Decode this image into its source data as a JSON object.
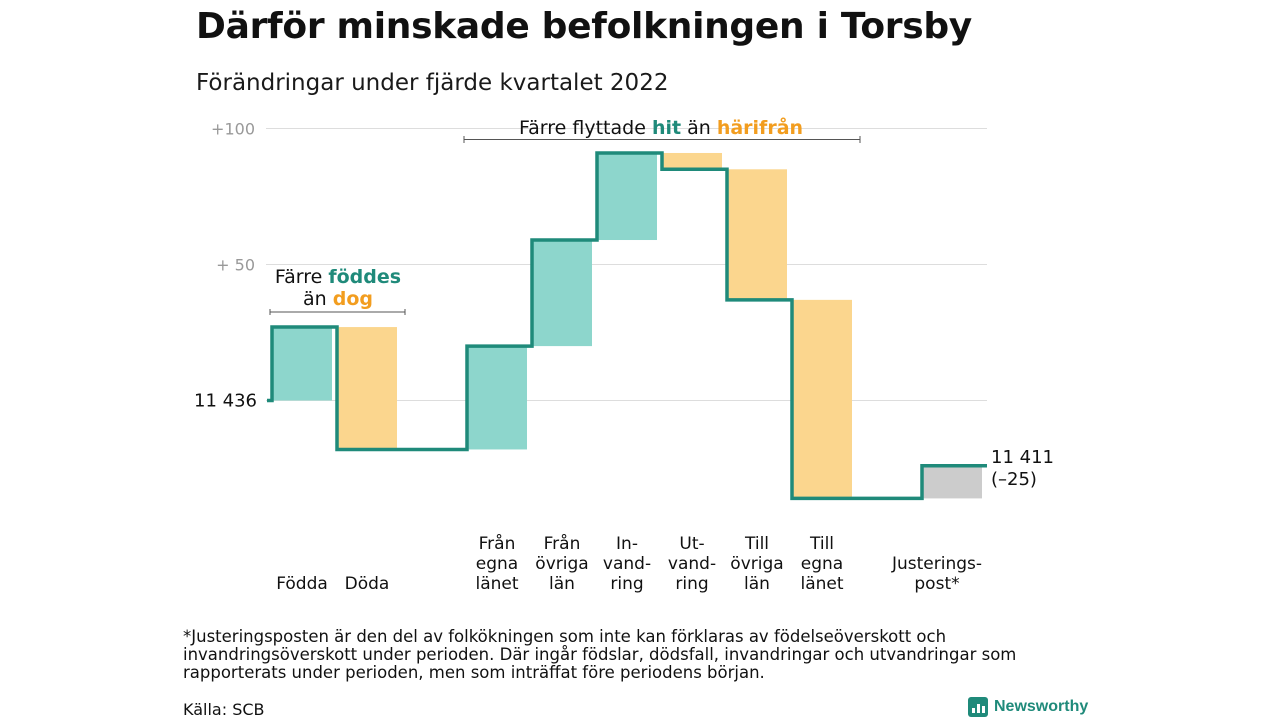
{
  "title": "Därför minskade befolkningen i Torsby",
  "subtitle": "Förändringar under fjärde kvartalet 2022",
  "chart_data": {
    "type": "waterfall",
    "start": {
      "value": 11436,
      "label": "11 436"
    },
    "end": {
      "value": 11411,
      "label": "11 411",
      "change_label": "(–25)"
    },
    "y_ticks": [
      {
        "value": 100,
        "label": "+100"
      },
      {
        "value": 50,
        "label": "+ 50"
      }
    ],
    "ylim": [
      -40,
      100
    ],
    "grid": true,
    "steps": [
      {
        "label": [
          "Födda"
        ],
        "change": 27,
        "kind": "in"
      },
      {
        "label": [
          "Döda"
        ],
        "change": -45,
        "kind": "out"
      },
      {
        "label": [
          ""
        ],
        "change": 0,
        "kind": "gap"
      },
      {
        "label": [
          "Från",
          "egna",
          "länet"
        ],
        "change": 38,
        "kind": "in"
      },
      {
        "label": [
          "Från",
          "övriga",
          "län"
        ],
        "change": 39,
        "kind": "in"
      },
      {
        "label": [
          "In-",
          "vand-",
          "ring"
        ],
        "change": 32,
        "kind": "in"
      },
      {
        "label": [
          "Ut-",
          "vand-",
          "ring"
        ],
        "change": -6,
        "kind": "out"
      },
      {
        "label": [
          "Till",
          "övriga",
          "län"
        ],
        "change": -48,
        "kind": "out"
      },
      {
        "label": [
          "Till",
          "egna",
          "länet"
        ],
        "change": -73,
        "kind": "out"
      },
      {
        "label": [
          ""
        ],
        "change": 0,
        "kind": "gap"
      },
      {
        "label": [
          "Justerings-",
          "post*"
        ],
        "change": 12,
        "kind": "adjust"
      }
    ],
    "annotations": [
      {
        "parts": [
          {
            "text": "Färre ",
            "color": "#111111"
          },
          {
            "text": "föddes",
            "color": "#1f8a7a"
          }
        ],
        "parts2": [
          {
            "text": "än ",
            "color": "#111111"
          },
          {
            "text": "dog",
            "color": "#f29d1f"
          }
        ]
      },
      {
        "parts": [
          {
            "text": "Färre flyttade ",
            "color": "#111111"
          },
          {
            "text": "hit",
            "color": "#1f8a7a"
          },
          {
            "text": " än ",
            "color": "#111111"
          },
          {
            "text": "härifrån",
            "color": "#f29d1f"
          }
        ]
      }
    ],
    "colors": {
      "in": "#8dd6cc",
      "out": "#fbd68e",
      "adjust": "#cccccc",
      "line": "#1f8a7a",
      "grid": "#dddddd",
      "tick": "#999999"
    }
  },
  "note": "*Justeringsposten är den del av folkökningen som inte kan förklaras av födelseöverskott och invandringsöverskott under perioden. Där ingår födslar, dödsfall, invandringar och utvandringar som rapporterats under perioden, men som inträffat före periodens början.",
  "source": "Källa: SCB",
  "brand": {
    "name": "Newsworthy",
    "icon": "newsworthy-logo-icon"
  }
}
